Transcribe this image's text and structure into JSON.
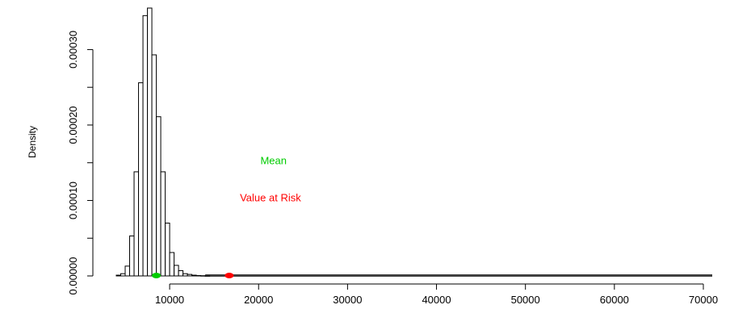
{
  "chart_data": {
    "type": "bar",
    "title": "",
    "xlabel": "",
    "ylabel": "Density",
    "bin_width": 500,
    "bins_x": [
      4000,
      4500,
      5000,
      5500,
      6000,
      6500,
      7000,
      7500,
      8000,
      8500,
      9000,
      9500,
      10000,
      10500,
      11000,
      11500,
      12000,
      12500,
      13000,
      13500,
      14000
    ],
    "density": [
      1e-06,
      3e-06,
      1.3e-05,
      5.3e-05,
      0.000138,
      0.000256,
      0.000345,
      0.000355,
      0.000293,
      0.000211,
      0.000138,
      7e-05,
      3.1e-05,
      1.4e-05,
      7e-06,
      3e-06,
      2e-06,
      1e-06,
      5e-07,
      3e-07,
      2e-07
    ],
    "tail_baseline": [
      14000,
      71000
    ],
    "xticks": [
      10000,
      20000,
      30000,
      40000,
      50000,
      60000,
      70000
    ],
    "xtick_labels": [
      "10000",
      "20000",
      "30000",
      "40000",
      "50000",
      "60000",
      "70000"
    ],
    "yticks": [
      0,
      5e-05,
      0.0001,
      0.00015,
      0.0002,
      0.00025,
      0.0003
    ],
    "ytick_labels": [
      "0.00000",
      "",
      "0.00010",
      "",
      "0.00020",
      "",
      "0.00030"
    ],
    "xlim": [
      4000,
      71000
    ],
    "ylim": [
      0,
      0.000355
    ],
    "grid": false,
    "markers": [
      {
        "name": "Mean",
        "x": 8500,
        "color": "#00cc00"
      },
      {
        "name": "Value at Risk",
        "x": 16700,
        "color": "#ff0000"
      }
    ],
    "annotations": [
      {
        "text": "Mean",
        "color": "#00cc00",
        "x": 20200,
        "y": 0.000148
      },
      {
        "text": "Value at Risk",
        "color": "#ff0000",
        "x": 17900,
        "y": 9.9e-05
      }
    ]
  }
}
